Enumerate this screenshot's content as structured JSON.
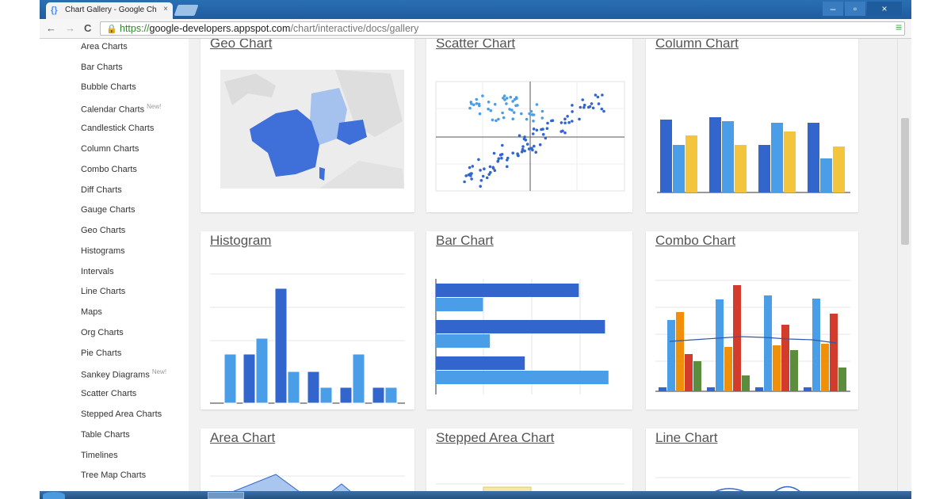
{
  "browser": {
    "tab_title": "Chart Gallery - Google Ch",
    "tab_close": "×",
    "tab_icon": "{}",
    "url_scheme": "https://",
    "url_host": "google-developers.appspot.com",
    "url_path": "/chart/interactive/docs/gallery",
    "nav_back": "←",
    "nav_forward": "→",
    "nav_reload": "C",
    "lock_icon": "🔒",
    "star_icon": "☆",
    "menu_icon": "≡",
    "win_min": "–",
    "win_max": "▫",
    "win_close": "×"
  },
  "sidebar": {
    "items": [
      {
        "label": "Area Charts",
        "badge": ""
      },
      {
        "label": "Bar Charts",
        "badge": ""
      },
      {
        "label": "Bubble Charts",
        "badge": ""
      },
      {
        "label": "Calendar Charts",
        "badge": "New!"
      },
      {
        "label": "Candlestick Charts",
        "badge": ""
      },
      {
        "label": "Column Charts",
        "badge": ""
      },
      {
        "label": "Combo Charts",
        "badge": ""
      },
      {
        "label": "Diff Charts",
        "badge": ""
      },
      {
        "label": "Gauge Charts",
        "badge": ""
      },
      {
        "label": "Geo Charts",
        "badge": ""
      },
      {
        "label": "Histograms",
        "badge": ""
      },
      {
        "label": "Intervals",
        "badge": ""
      },
      {
        "label": "Line Charts",
        "badge": ""
      },
      {
        "label": "Maps",
        "badge": ""
      },
      {
        "label": "Org Charts",
        "badge": ""
      },
      {
        "label": "Pie Charts",
        "badge": ""
      },
      {
        "label": "Sankey Diagrams",
        "badge": "New!"
      },
      {
        "label": "Scatter Charts",
        "badge": ""
      },
      {
        "label": "Stepped Area Charts",
        "badge": ""
      },
      {
        "label": "Table Charts",
        "badge": ""
      },
      {
        "label": "Timelines",
        "badge": ""
      },
      {
        "label": "Tree Map Charts",
        "badge": ""
      }
    ]
  },
  "gallery": {
    "cards": [
      {
        "title": "Geo Chart"
      },
      {
        "title": "Scatter Chart"
      },
      {
        "title": "Column Chart"
      },
      {
        "title": "Histogram"
      },
      {
        "title": "Bar Chart"
      },
      {
        "title": "Combo Chart"
      },
      {
        "title": "Area Chart"
      },
      {
        "title": "Stepped Area Chart"
      },
      {
        "title": "Line Chart"
      }
    ]
  },
  "colors": {
    "dark_blue": "#3366cc",
    "light_blue": "#4a9ee8",
    "yellow": "#f2c53d",
    "orange": "#f0900a",
    "red": "#d33b2c",
    "green": "#5b8e3c",
    "map_dark": "#3f6fd8",
    "map_light": "#a5c2ef",
    "map_land": "#e4e4e4"
  },
  "thumbnails": {
    "column": {
      "groups": [
        [
          92,
          60,
          72
        ],
        [
          95,
          90,
          60
        ],
        [
          60,
          88,
          77
        ],
        [
          88,
          43,
          58
        ]
      ]
    },
    "histogram": {
      "bars": [
        62,
        62,
        82,
        145,
        40,
        40,
        20,
        20,
        62,
        20,
        20
      ]
    },
    "bar": {
      "rows": [
        [
          82,
          27
        ],
        [
          97,
          31
        ],
        [
          51,
          99
        ]
      ]
    },
    "combo": {
      "groups": [
        [
          5,
          90,
          100,
          47,
          38
        ],
        [
          5,
          116,
          56,
          134,
          20
        ],
        [
          5,
          121,
          58,
          84,
          52
        ],
        [
          5,
          117,
          60,
          98,
          30
        ]
      ],
      "line": [
        63,
        65,
        67,
        69,
        68,
        66,
        65,
        61
      ]
    }
  }
}
